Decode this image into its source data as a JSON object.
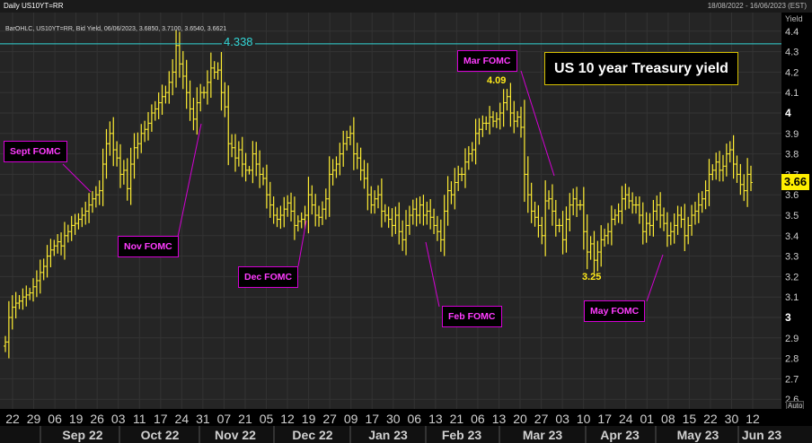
{
  "header": {
    "title": "Daily US10YT=RR",
    "date_range": "18/08/2022 - 16/06/2023 (EST)",
    "info_line": "BarOHLC, US10YT=RR, Bid Yield, 06/06/2023, 3.6850, 3.7100, 3.6540, 3.6621"
  },
  "colors": {
    "background": "#252525",
    "bars": "#ffee33",
    "fomc_border": "#d400d4",
    "fomc_text": "#ff3cff",
    "peak_line": "#33d6d6",
    "current_box": "#ffee00"
  },
  "annotations": {
    "banner": "US 10 year Treasury yield",
    "peak_value_label": "4.338",
    "mar_peak_label": "4.09",
    "apr_low_label": "3.25",
    "current_value_label": "3.66",
    "auto_label": "Auto",
    "fomc": [
      {
        "id": "sept",
        "label": "Sept FOMC"
      },
      {
        "id": "nov",
        "label": "Nov FOMC"
      },
      {
        "id": "dec",
        "label": "Dec FOMC"
      },
      {
        "id": "feb",
        "label": "Feb FOMC"
      },
      {
        "id": "mar",
        "label": "Mar FOMC"
      },
      {
        "id": "may",
        "label": "May FOMC"
      }
    ]
  },
  "chart_data": {
    "type": "bar",
    "subtype": "ohlc",
    "title": "US 10 year Treasury yield",
    "ylabel": "Yield",
    "ylim": [
      2.5,
      4.5
    ],
    "y_ticks": [
      2.6,
      2.7,
      2.8,
      2.9,
      3,
      3.1,
      3.2,
      3.3,
      3.4,
      3.5,
      3.6,
      3.7,
      3.8,
      3.9,
      4,
      4.1,
      4.2,
      4.3,
      4.4
    ],
    "y_tick_labels": [
      "2.6",
      "2.7",
      "2.8",
      "2.9",
      "3",
      "3.1",
      "3.2",
      "3.3",
      "3.4",
      "3.5",
      "3.6",
      "3.7",
      "3.8",
      "3.9",
      "4",
      "4.1",
      "4.2",
      "4.3",
      "4.4"
    ],
    "horizontal_line": 4.338,
    "day_labels": [
      "22",
      "29",
      "06",
      "19",
      "26",
      "03",
      "11",
      "17",
      "24",
      "31",
      "07",
      "21",
      "05",
      "12",
      "19",
      "27",
      "09",
      "17",
      "30",
      "06",
      "13",
      "21",
      "06",
      "13",
      "20",
      "27",
      "03",
      "10",
      "17",
      "24",
      "01",
      "08",
      "15",
      "22",
      "30",
      "12"
    ],
    "month_labels": [
      "Sep 22",
      "Oct 22",
      "Nov 22",
      "Dec 22",
      "Jan 23",
      "Feb 23",
      "Mar 23",
      "Apr 23",
      "May 23",
      "Jun 23"
    ],
    "grid": true,
    "close": [
      2.88,
      3.0,
      3.05,
      3.07,
      3.08,
      3.1,
      3.11,
      3.12,
      3.15,
      3.18,
      3.22,
      3.25,
      3.3,
      3.33,
      3.35,
      3.37,
      3.35,
      3.4,
      3.42,
      3.45,
      3.46,
      3.48,
      3.5,
      3.52,
      3.55,
      3.58,
      3.6,
      3.62,
      3.75,
      3.85,
      3.9,
      3.82,
      3.78,
      3.7,
      3.72,
      3.63,
      3.75,
      3.83,
      3.85,
      3.9,
      3.92,
      3.95,
      4.0,
      4.02,
      4.05,
      4.08,
      4.1,
      4.15,
      4.2,
      4.33,
      4.24,
      4.18,
      4.1,
      4.02,
      3.97,
      4.05,
      4.1,
      4.1,
      4.15,
      4.22,
      4.2,
      4.21,
      4.1,
      4.03,
      3.85,
      3.83,
      3.78,
      3.82,
      3.75,
      3.72,
      3.72,
      3.8,
      3.75,
      3.7,
      3.68,
      3.6,
      3.55,
      3.5,
      3.48,
      3.5,
      3.53,
      3.56,
      3.52,
      3.45,
      3.47,
      3.48,
      3.5,
      3.6,
      3.55,
      3.5,
      3.49,
      3.53,
      3.58,
      3.7,
      3.72,
      3.75,
      3.8,
      3.85,
      3.88,
      3.9,
      3.8,
      3.78,
      3.72,
      3.68,
      3.6,
      3.55,
      3.58,
      3.6,
      3.52,
      3.5,
      3.48,
      3.45,
      3.5,
      3.42,
      3.38,
      3.45,
      3.5,
      3.53,
      3.5,
      3.55,
      3.5,
      3.52,
      3.49,
      3.45,
      3.42,
      3.38,
      3.52,
      3.62,
      3.6,
      3.66,
      3.7,
      3.7,
      3.76,
      3.8,
      3.82,
      3.9,
      3.92,
      3.95,
      3.95,
      3.98,
      3.96,
      3.97,
      4.0,
      4.05,
      4.08,
      4.0,
      3.96,
      3.98,
      3.93,
      3.7,
      3.6,
      3.52,
      3.49,
      3.45,
      3.4,
      3.57,
      3.58,
      3.52,
      3.45,
      3.45,
      3.38,
      3.48,
      3.55,
      3.58,
      3.55,
      3.55,
      3.42,
      3.32,
      3.36,
      3.28,
      3.32,
      3.38,
      3.4,
      3.42,
      3.48,
      3.5,
      3.52,
      3.58,
      3.6,
      3.57,
      3.55,
      3.55,
      3.5,
      3.42,
      3.46,
      3.45,
      3.52,
      3.55,
      3.5,
      3.46,
      3.4,
      3.42,
      3.45,
      3.5,
      3.48,
      3.4,
      3.45,
      3.5,
      3.52,
      3.55,
      3.58,
      3.62,
      3.7,
      3.72,
      3.76,
      3.72,
      3.74,
      3.8,
      3.82,
      3.75,
      3.7,
      3.65,
      3.62,
      3.7,
      3.66
    ]
  }
}
